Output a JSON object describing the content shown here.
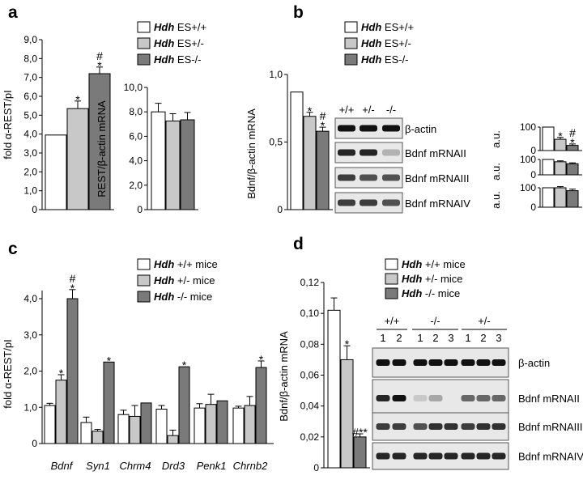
{
  "panels": {
    "a": {
      "label": "a",
      "legend": [
        {
          "gene": "Hdh",
          "suffix": " ES+/+"
        },
        {
          "gene": "Hdh",
          "suffix": " ES+/-"
        },
        {
          "gene": "Hdh",
          "suffix": " ES-/-"
        }
      ],
      "marks_left": [
        [
          "#",
          "*"
        ],
        [
          "*"
        ],
        []
      ]
    },
    "b": {
      "label": "b",
      "legend": [
        {
          "gene": "Hdh",
          "suffix": " ES+/+"
        },
        {
          "gene": "Hdh",
          "suffix": " ES+/-"
        },
        {
          "gene": "Hdh",
          "suffix": " ES-/-"
        }
      ],
      "lanes": [
        "+/+",
        "+/-",
        "-/-"
      ],
      "blots": [
        "β-actin",
        "Bdnf mRNAII",
        "Bdnf mRNAIII",
        "Bdnf mRNAIV"
      ],
      "small_ylabel": "a.u."
    },
    "c": {
      "label": "c",
      "legend": [
        {
          "gene": "Hdh",
          "suffix": " +/+ mice"
        },
        {
          "gene": "Hdh",
          "suffix": " +/- mice"
        },
        {
          "gene": "Hdh",
          "suffix": " -/- mice"
        }
      ]
    },
    "d": {
      "label": "d",
      "legend": [
        {
          "gene": "Hdh",
          "suffix": " +/+ mice"
        },
        {
          "gene": "Hdh",
          "suffix": " +/- mice"
        },
        {
          "gene": "Hdh",
          "suffix": " -/- mice"
        }
      ],
      "lane_groups": [
        "+/+",
        "-/-",
        "+/-"
      ],
      "lane_numbers": [
        "1",
        "2",
        "1",
        "2",
        "3",
        "1",
        "2",
        "3"
      ],
      "blots": [
        "β-actin",
        "Bdnf mRNAII",
        "Bdnf mRNAIII",
        "Bdnf mRNAIV"
      ]
    }
  },
  "colors": {
    "wt": "#ffffff",
    "het": "#c8c8c8",
    "ko": "#7a7a7a",
    "stroke": "#000000"
  },
  "chart_data": [
    {
      "id": "a-left",
      "type": "bar",
      "ylabel": "fold α-REST/pI",
      "ylim": [
        0,
        9
      ],
      "yticks": [
        "0",
        "1,0",
        "2,0",
        "3,0",
        "4,0",
        "5,0",
        "6,0",
        "7,0",
        "8,0",
        "9,0"
      ],
      "series": [
        {
          "name": "Hdh ES+/+",
          "values": [
            3.95
          ]
        },
        {
          "name": "Hdh ES+/-",
          "values": [
            5.35
          ]
        },
        {
          "name": "Hdh ES-/-",
          "values": [
            7.2
          ]
        }
      ],
      "errors": [
        0,
        0.4,
        0.35
      ],
      "annotations": [
        "",
        "*",
        "# *"
      ]
    },
    {
      "id": "a-right",
      "type": "bar",
      "ylabel": "REST/β-actin mRNA",
      "ylim": [
        0,
        10
      ],
      "yticks": [
        "0",
        "2,0",
        "4,0",
        "6,0",
        "8,0",
        "10,0"
      ],
      "series": [
        {
          "name": "Hdh ES+/+",
          "values": [
            8.0
          ]
        },
        {
          "name": "Hdh ES+/-",
          "values": [
            7.25
          ]
        },
        {
          "name": "Hdh ES-/-",
          "values": [
            7.35
          ]
        }
      ],
      "errors": [
        0.7,
        0.6,
        0.6
      ]
    },
    {
      "id": "b-main",
      "type": "bar",
      "ylabel": "Bdnf/β-actin mRNA",
      "ylim": [
        0,
        1.0
      ],
      "yticks": [
        "0",
        "0,5",
        "1,0"
      ],
      "series": [
        {
          "name": "Hdh ES+/+",
          "values": [
            0.87
          ]
        },
        {
          "name": "Hdh ES+/-",
          "values": [
            0.69
          ]
        },
        {
          "name": "Hdh ES-/-",
          "values": [
            0.58
          ]
        }
      ],
      "errors": [
        0,
        0.03,
        0.03
      ],
      "annotations": [
        "",
        "*",
        "# *"
      ]
    },
    {
      "id": "b-small-II",
      "type": "bar",
      "ylim": [
        0,
        100
      ],
      "yticks": [
        "0",
        "100"
      ],
      "series": [
        {
          "name": "Hdh ES+/+",
          "values": [
            100
          ]
        },
        {
          "name": "Hdh ES+/-",
          "values": [
            48
          ]
        },
        {
          "name": "Hdh ES-/-",
          "values": [
            22
          ]
        }
      ],
      "errors": [
        0,
        8,
        6
      ],
      "annotations": [
        "",
        "*",
        "# *"
      ]
    },
    {
      "id": "b-small-III",
      "type": "bar",
      "ylim": [
        0,
        100
      ],
      "yticks": [
        "0",
        "100"
      ],
      "series": [
        {
          "name": "Hdh ES+/+",
          "values": [
            100
          ]
        },
        {
          "name": "Hdh ES+/-",
          "values": [
            85
          ]
        },
        {
          "name": "Hdh ES-/-",
          "values": [
            72
          ]
        }
      ],
      "errors": [
        0,
        6,
        6
      ]
    },
    {
      "id": "b-small-IV",
      "type": "bar",
      "ylim": [
        0,
        100
      ],
      "yticks": [
        "0",
        "100"
      ],
      "series": [
        {
          "name": "Hdh ES+/+",
          "values": [
            100
          ]
        },
        {
          "name": "Hdh ES+/-",
          "values": [
            100
          ]
        },
        {
          "name": "Hdh ES-/-",
          "values": [
            85
          ]
        }
      ],
      "errors": [
        0,
        6,
        8
      ]
    },
    {
      "id": "c-main",
      "type": "bar",
      "ylabel": "fold α-REST/pI",
      "ylim": [
        0,
        4.5
      ],
      "yticks": [
        "0",
        "1,0",
        "2,0",
        "3,0",
        "4,0"
      ],
      "categories": [
        "Bdnf",
        "Syn1",
        "Chrm4",
        "Drd3",
        "Penk1",
        "Chrnb2"
      ],
      "series": [
        {
          "name": "Hdh +/+ mice",
          "values": [
            1.05,
            0.58,
            0.8,
            0.95,
            0.98,
            0.98
          ]
        },
        {
          "name": "Hdh +/- mice",
          "values": [
            1.75,
            0.34,
            0.75,
            0.22,
            1.08,
            1.05
          ]
        },
        {
          "name": "Hdh -/- mice",
          "values": [
            4.0,
            2.25,
            1.12,
            2.12,
            1.18,
            2.1
          ]
        }
      ],
      "errors": [
        [
          0.06,
          0.15,
          0.12,
          0.1,
          0.12,
          0.05
        ],
        [
          0.15,
          0.05,
          0.3,
          0.15,
          0.28,
          0.25
        ],
        [
          0.25,
          0,
          0,
          0,
          0,
          0.18
        ]
      ],
      "annotations": [
        [
          "",
          "*",
          "# *"
        ],
        [
          "",
          "",
          "*"
        ],
        [
          "",
          "",
          ""
        ],
        [
          "",
          "",
          "*"
        ],
        [
          "",
          "",
          ""
        ],
        [
          "",
          "",
          "*"
        ]
      ]
    },
    {
      "id": "d-main",
      "type": "bar",
      "ylabel": "Bdnf/β-actin mRNA",
      "ylim": [
        0,
        0.12
      ],
      "yticks": [
        "0",
        "0,02",
        "0,04",
        "0,06",
        "0,08",
        "0,10",
        "0,12"
      ],
      "series": [
        {
          "name": "Hdh +/+ mice",
          "values": [
            0.102
          ]
        },
        {
          "name": "Hdh +/- mice",
          "values": [
            0.07
          ]
        },
        {
          "name": "Hdh -/- mice",
          "values": [
            0.02
          ]
        }
      ],
      "errors": [
        0.008,
        0.009,
        0.002
      ],
      "annotations": [
        "",
        "*",
        "#**"
      ]
    }
  ]
}
